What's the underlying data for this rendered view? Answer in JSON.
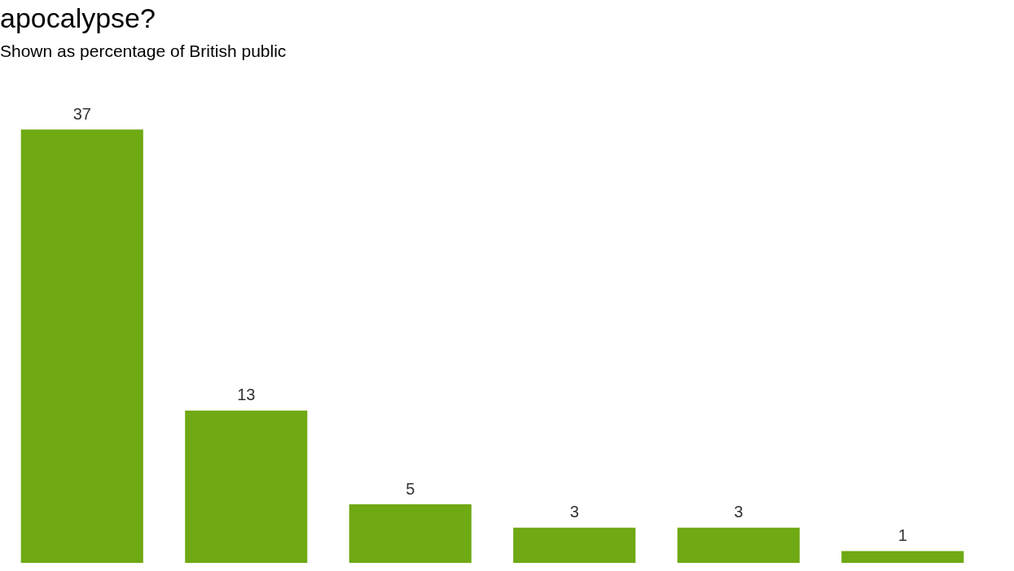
{
  "chart_data": {
    "type": "bar",
    "title": "apocalypse?",
    "subtitle": "Shown as percentage of British public",
    "categories": [
      null,
      null,
      null,
      null,
      null,
      null
    ],
    "values": [
      37,
      13,
      5,
      3,
      3,
      1
    ],
    "color": "#6fa913",
    "data_labels": true,
    "legend": false,
    "grid": false
  }
}
